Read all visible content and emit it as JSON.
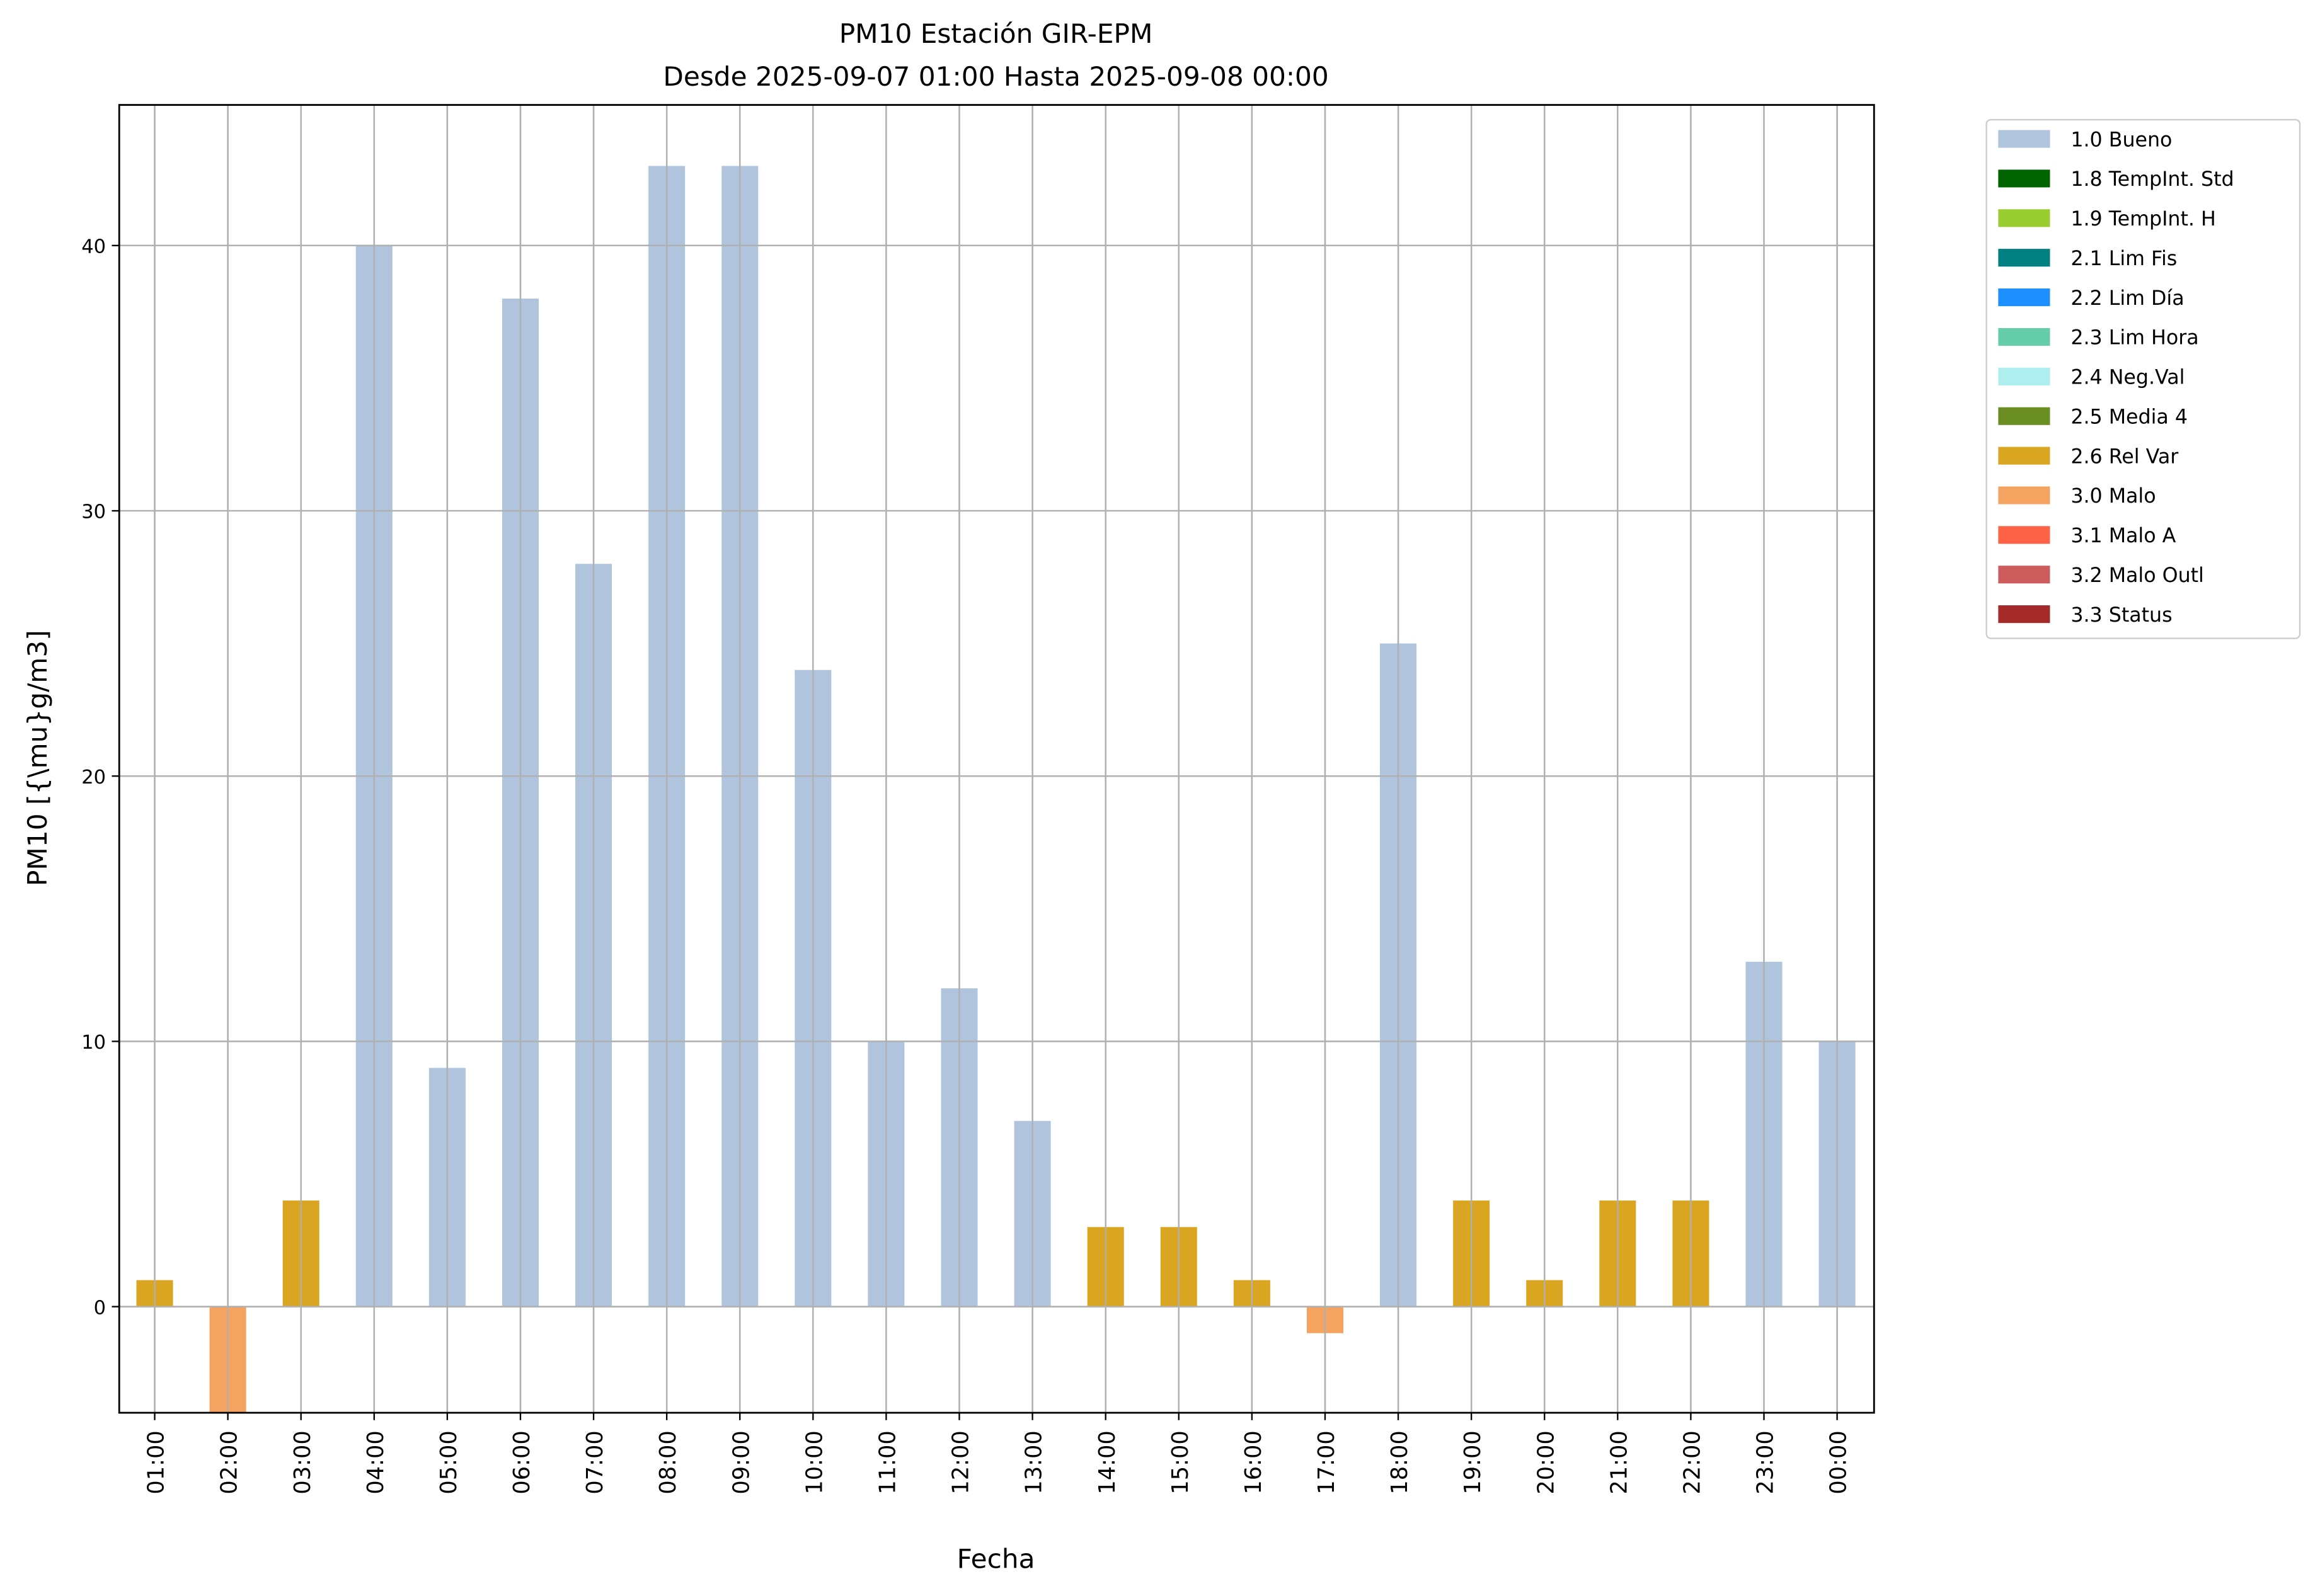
{
  "chart_data": {
    "type": "bar",
    "title": "PM10 Estación GIR-EPM",
    "subtitle": "Desde 2025-09-07 01:00 Hasta 2025-09-08 00:00",
    "xlabel": "Fecha",
    "ylabel": "PM10 [{\\mu}g/m3]",
    "ylim": [
      -4,
      45.3
    ],
    "yticks": [
      0,
      10,
      20,
      30,
      40
    ],
    "grid": true,
    "legend_placement": "outside-top-right",
    "categories": [
      "01:00",
      "02:00",
      "03:00",
      "04:00",
      "05:00",
      "06:00",
      "07:00",
      "08:00",
      "09:00",
      "10:00",
      "11:00",
      "12:00",
      "13:00",
      "14:00",
      "15:00",
      "16:00",
      "17:00",
      "18:00",
      "19:00",
      "20:00",
      "21:00",
      "22:00",
      "23:00",
      "00:00"
    ],
    "values": [
      1,
      -4,
      4,
      40,
      9,
      38,
      28,
      43,
      43,
      24,
      10,
      12,
      7,
      3,
      3,
      1,
      -1,
      25,
      4,
      1,
      4,
      4,
      13,
      10
    ],
    "flags": [
      "2.6 Rel Var",
      "3.0 Malo",
      "2.6 Rel Var",
      "1.0 Bueno",
      "1.0 Bueno",
      "1.0 Bueno",
      "1.0 Bueno",
      "1.0 Bueno",
      "1.0 Bueno",
      "1.0 Bueno",
      "1.0 Bueno",
      "1.0 Bueno",
      "1.0 Bueno",
      "2.6 Rel Var",
      "2.6 Rel Var",
      "2.6 Rel Var",
      "3.0 Malo",
      "1.0 Bueno",
      "2.6 Rel Var",
      "2.6 Rel Var",
      "2.6 Rel Var",
      "2.6 Rel Var",
      "1.0 Bueno",
      "1.0 Bueno"
    ],
    "legend": [
      {
        "label": "1.0 Bueno",
        "color": "#b0c4de"
      },
      {
        "label": "1.8 TempInt. Std",
        "color": "#006400"
      },
      {
        "label": "1.9 TempInt. H",
        "color": "#9acd32"
      },
      {
        "label": "2.1 Lim Fis",
        "color": "#008080"
      },
      {
        "label": "2.2 Lim Día",
        "color": "#1e90ff"
      },
      {
        "label": "2.3 Lim Hora",
        "color": "#66cdaa"
      },
      {
        "label": "2.4 Neg.Val",
        "color": "#afeeee"
      },
      {
        "label": "2.5 Media 4",
        "color": "#6b8e23"
      },
      {
        "label": "2.6 Rel Var",
        "color": "#daa520"
      },
      {
        "label": "3.0 Malo",
        "color": "#f4a460"
      },
      {
        "label": "3.1 Malo A",
        "color": "#ff6347"
      },
      {
        "label": "3.2 Malo Outl",
        "color": "#cd5c5c"
      },
      {
        "label": "3.3 Status",
        "color": "#a52a2a"
      }
    ]
  }
}
